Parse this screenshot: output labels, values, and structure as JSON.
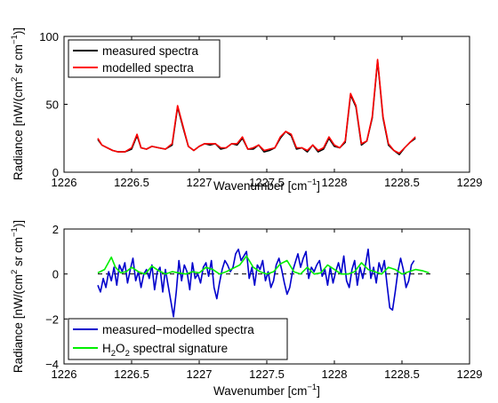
{
  "chart_data": [
    {
      "type": "line",
      "xlabel": "Wavenumber [cm",
      "xlabel_sup": "−1",
      "xlabel_end": "]",
      "ylabel": "Radiance [nW/(cm",
      "ylabel_sup1": "2",
      "ylabel_mid": " sr cm",
      "ylabel_sup2": "−1",
      "ylabel_end": ")]",
      "xlim": [
        1226,
        1229
      ],
      "ylim": [
        0,
        100
      ],
      "xticks": [
        "1226",
        "1226.5",
        "1227",
        "1227.5",
        "1228",
        "1228.5",
        "1229"
      ],
      "yticks": [
        "0",
        "50",
        "100"
      ],
      "grid": false,
      "legend_position": "top-left",
      "series": [
        {
          "name": "measured spectra",
          "color": "#000000",
          "x": [
            1226.25,
            1226.28,
            1226.32,
            1226.36,
            1226.4,
            1226.45,
            1226.5,
            1226.54,
            1226.57,
            1226.61,
            1226.65,
            1226.7,
            1226.75,
            1226.8,
            1226.84,
            1226.88,
            1226.92,
            1226.96,
            1227.0,
            1227.04,
            1227.08,
            1227.12,
            1227.16,
            1227.2,
            1227.24,
            1227.28,
            1227.32,
            1227.36,
            1227.4,
            1227.44,
            1227.48,
            1227.52,
            1227.56,
            1227.6,
            1227.64,
            1227.68,
            1227.72,
            1227.76,
            1227.8,
            1227.84,
            1227.88,
            1227.92,
            1227.96,
            1228.0,
            1228.04,
            1228.08,
            1228.12,
            1228.16,
            1228.2,
            1228.24,
            1228.28,
            1228.32,
            1228.36,
            1228.4,
            1228.44,
            1228.48,
            1228.52,
            1228.56,
            1228.6
          ],
          "y": [
            24,
            20,
            18,
            16,
            15,
            15,
            17,
            27,
            18,
            17,
            19,
            18,
            17,
            20,
            48,
            33,
            19,
            16,
            19,
            21,
            20,
            21,
            17,
            18,
            21,
            20,
            25,
            17,
            17,
            20,
            15,
            16,
            18,
            25,
            30,
            27,
            17,
            18,
            15,
            20,
            15,
            17,
            25,
            19,
            18,
            22,
            57,
            48,
            20,
            23,
            40,
            82,
            40,
            20,
            16,
            13,
            18,
            22,
            25
          ]
        },
        {
          "name": "modelled spectra",
          "color": "#ff0000",
          "x": [
            1226.25,
            1226.28,
            1226.32,
            1226.36,
            1226.4,
            1226.45,
            1226.5,
            1226.54,
            1226.57,
            1226.61,
            1226.65,
            1226.7,
            1226.75,
            1226.8,
            1226.84,
            1226.88,
            1226.92,
            1226.96,
            1227.0,
            1227.04,
            1227.08,
            1227.12,
            1227.16,
            1227.2,
            1227.24,
            1227.28,
            1227.32,
            1227.36,
            1227.4,
            1227.44,
            1227.48,
            1227.52,
            1227.56,
            1227.6,
            1227.64,
            1227.68,
            1227.72,
            1227.76,
            1227.8,
            1227.84,
            1227.88,
            1227.92,
            1227.96,
            1228.0,
            1228.04,
            1228.08,
            1228.12,
            1228.16,
            1228.2,
            1228.24,
            1228.28,
            1228.32,
            1228.36,
            1228.4,
            1228.44,
            1228.48,
            1228.52,
            1228.56,
            1228.6
          ],
          "y": [
            25,
            20,
            18,
            16,
            15,
            15,
            18,
            28,
            18,
            17,
            19,
            18,
            17,
            21,
            49,
            34,
            19,
            16,
            19,
            21,
            21,
            21,
            18,
            18,
            21,
            21,
            26,
            17,
            18,
            20,
            16,
            17,
            18,
            26,
            30,
            28,
            18,
            18,
            16,
            20,
            16,
            18,
            26,
            20,
            18,
            23,
            58,
            49,
            21,
            23,
            41,
            83,
            41,
            21,
            16,
            14,
            18,
            22,
            26
          ]
        }
      ]
    },
    {
      "type": "line",
      "xlabel": "Wavenumber [cm",
      "xlabel_sup": "−1",
      "xlabel_end": "]",
      "ylabel": "Radiance [nW/(cm",
      "ylabel_sup1": "2",
      "ylabel_mid": " sr cm",
      "ylabel_sup2": "−1",
      "ylabel_end": ")]",
      "xlim": [
        1226,
        1229
      ],
      "ylim": [
        -4,
        2
      ],
      "xticks": [
        "1226",
        "1226.5",
        "1227",
        "1227.5",
        "1228",
        "1228.5",
        "1229"
      ],
      "yticks": [
        "−4",
        "−2",
        "0",
        "2"
      ],
      "grid": false,
      "legend_position": "bottom-left",
      "zero_line": {
        "y": 0,
        "style": "dashed",
        "color": "#000000"
      },
      "series": [
        {
          "name": "measured−modelled spectra",
          "color": "#0000cc",
          "x": [
            1226.25,
            1226.27,
            1226.29,
            1226.31,
            1226.33,
            1226.35,
            1226.37,
            1226.39,
            1226.41,
            1226.43,
            1226.45,
            1226.47,
            1226.49,
            1226.51,
            1226.53,
            1226.55,
            1226.57,
            1226.59,
            1226.61,
            1226.63,
            1226.65,
            1226.67,
            1226.69,
            1226.71,
            1226.73,
            1226.75,
            1226.77,
            1226.79,
            1226.81,
            1226.83,
            1226.85,
            1226.87,
            1226.89,
            1226.91,
            1226.93,
            1226.95,
            1226.97,
            1226.99,
            1227.01,
            1227.03,
            1227.05,
            1227.07,
            1227.09,
            1227.11,
            1227.13,
            1227.15,
            1227.17,
            1227.19,
            1227.21,
            1227.23,
            1227.25,
            1227.27,
            1227.29,
            1227.31,
            1227.33,
            1227.35,
            1227.37,
            1227.39,
            1227.41,
            1227.43,
            1227.45,
            1227.47,
            1227.49,
            1227.51,
            1227.53,
            1227.55,
            1227.57,
            1227.59,
            1227.61,
            1227.63,
            1227.65,
            1227.67,
            1227.69,
            1227.71,
            1227.73,
            1227.75,
            1227.77,
            1227.79,
            1227.81,
            1227.83,
            1227.85,
            1227.87,
            1227.89,
            1227.91,
            1227.93,
            1227.95,
            1227.97,
            1227.99,
            1228.01,
            1228.03,
            1228.05,
            1228.07,
            1228.09,
            1228.11,
            1228.13,
            1228.15,
            1228.17,
            1228.19,
            1228.21,
            1228.23,
            1228.25,
            1228.27,
            1228.29,
            1228.31,
            1228.33,
            1228.35,
            1228.37,
            1228.39,
            1228.41,
            1228.43,
            1228.45,
            1228.47,
            1228.49,
            1228.51,
            1228.53,
            1228.55,
            1228.57,
            1228.59
          ],
          "y": [
            -0.5,
            -0.8,
            -0.2,
            -0.6,
            0.1,
            -0.3,
            0.3,
            -0.5,
            0.4,
            0.1,
            0.5,
            -0.4,
            0.2,
            0.7,
            -0.3,
            0.1,
            -0.6,
            0.0,
            0.2,
            -0.2,
            0.4,
            -0.7,
            0.1,
            0.3,
            -0.8,
            0.2,
            -0.5,
            -1.2,
            -1.9,
            -0.8,
            0.6,
            -0.3,
            0.4,
            0.1,
            -0.7,
            0.5,
            -0.2,
            0.0,
            -0.4,
            0.3,
            0.5,
            -0.1,
            0.6,
            -0.6,
            -1.1,
            -0.4,
            0.2,
            0.6,
            0.4,
            0.1,
            0.3,
            0.9,
            1.1,
            0.6,
            0.8,
            1.0,
            -0.2,
            0.3,
            -0.5,
            0.4,
            0.2,
            0.6,
            -0.3,
            0.1,
            -0.6,
            -0.3,
            0.4,
            0.7,
            0.2,
            -0.4,
            -0.9,
            -0.6,
            0.1,
            0.5,
            0.9,
            0.3,
            0.7,
            1.0,
            -0.2,
            0.3,
            0.1,
            0.4,
            0.6,
            -0.1,
            0.2,
            -0.5,
            0.3,
            -0.4,
            0.1,
            0.5,
            0.0,
            0.8,
            -0.3,
            -0.6,
            0.2,
            0.6,
            -0.5,
            0.3,
            -0.2,
            0.4,
            1.1,
            -0.2,
            0.3,
            -0.4,
            0.5,
            0.1,
            0.6,
            -0.5,
            -1.5,
            -1.6,
            -0.8,
            0.1,
            0.7,
            0.2,
            -0.6,
            -0.3,
            0.4,
            0.6
          ],
          "extra_tail": true
        },
        {
          "name_parts": [
            "H",
            "2",
            "O",
            "2",
            " spectral signature"
          ],
          "name": "H2O2 spectral signature",
          "color": "#00ee00",
          "x": [
            1226.25,
            1226.3,
            1226.35,
            1226.38,
            1226.42,
            1226.46,
            1226.5,
            1226.55,
            1226.6,
            1226.65,
            1226.7,
            1226.75,
            1226.8,
            1226.85,
            1226.9,
            1226.95,
            1227.0,
            1227.05,
            1227.1,
            1227.15,
            1227.2,
            1227.25,
            1227.3,
            1227.35,
            1227.4,
            1227.45,
            1227.5,
            1227.55,
            1227.6,
            1227.65,
            1227.7,
            1227.75,
            1227.8,
            1227.85,
            1227.9,
            1227.95,
            1228.0,
            1228.05,
            1228.1,
            1228.15,
            1228.2,
            1228.25,
            1228.3,
            1228.35,
            1228.4,
            1228.45,
            1228.5,
            1228.55,
            1228.6,
            1228.65,
            1228.7
          ],
          "y": [
            0.05,
            0.2,
            0.75,
            0.3,
            0.05,
            0.1,
            0.3,
            0.1,
            0.0,
            0.35,
            0.15,
            0.0,
            0.1,
            0.05,
            0.0,
            0.1,
            0.05,
            0.3,
            0.2,
            0.0,
            0.1,
            0.25,
            0.4,
            0.8,
            0.3,
            0.1,
            0.0,
            0.1,
            0.45,
            0.6,
            0.1,
            0.0,
            0.3,
            0.0,
            0.05,
            0.4,
            0.2,
            0.0,
            0.0,
            0.1,
            0.5,
            0.2,
            0.1,
            0.0,
            0.3,
            0.2,
            0.0,
            0.1,
            0.2,
            0.15,
            0.05
          ]
        }
      ]
    }
  ]
}
